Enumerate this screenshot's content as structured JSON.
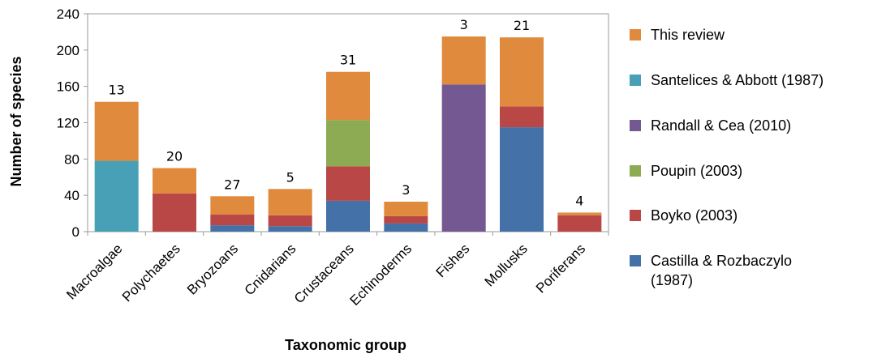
{
  "chart_data": {
    "type": "bar",
    "stacked": true,
    "title": "",
    "xlabel": "Taxonomic group",
    "ylabel": "Number of species",
    "ylim": [
      0,
      240
    ],
    "yticks": [
      0,
      40,
      80,
      120,
      160,
      200,
      240
    ],
    "grid": false,
    "legend_position": "right",
    "categories": [
      "Macroalgae",
      "Polychaetes",
      "Bryozoans",
      "Cnidarians",
      "Crustaceans",
      "Echinoderms",
      "Fishes",
      "Mollusks",
      "Poriferans"
    ],
    "series": [
      {
        "name": "Castilla & Rozbaczylo (1987)",
        "color": "#4472a8",
        "values": [
          0,
          0,
          7,
          6,
          34,
          9,
          0,
          115,
          0
        ]
      },
      {
        "name": "Boyko (2003)",
        "color": "#b94745",
        "values": [
          0,
          42,
          12,
          12,
          38,
          8,
          0,
          23,
          18
        ]
      },
      {
        "name": "Poupin (2003)",
        "color": "#8cab52",
        "values": [
          0,
          0,
          0,
          0,
          51,
          0,
          0,
          0,
          0
        ]
      },
      {
        "name": "Randall & Cea (2010)",
        "color": "#735891",
        "values": [
          0,
          0,
          0,
          0,
          0,
          0,
          162,
          0,
          0
        ]
      },
      {
        "name": "Santelices & Abbott (1987)",
        "color": "#47a0b5",
        "values": [
          78,
          0,
          0,
          0,
          0,
          0,
          0,
          0,
          0
        ]
      },
      {
        "name": "This review",
        "color": "#e08a3e",
        "values": [
          65,
          28,
          20,
          29,
          53,
          16,
          53,
          76,
          3
        ]
      }
    ],
    "data_labels": [
      "13",
      "20",
      "27",
      "5",
      "31",
      "3",
      "3",
      "21",
      "4"
    ]
  },
  "legend_order": [
    "This review",
    "Santelices & Abbott (1987)",
    "Randall & Cea (2010)",
    "Poupin (2003)",
    "Boyko (2003)",
    "Castilla & Rozbaczylo (1987)"
  ]
}
